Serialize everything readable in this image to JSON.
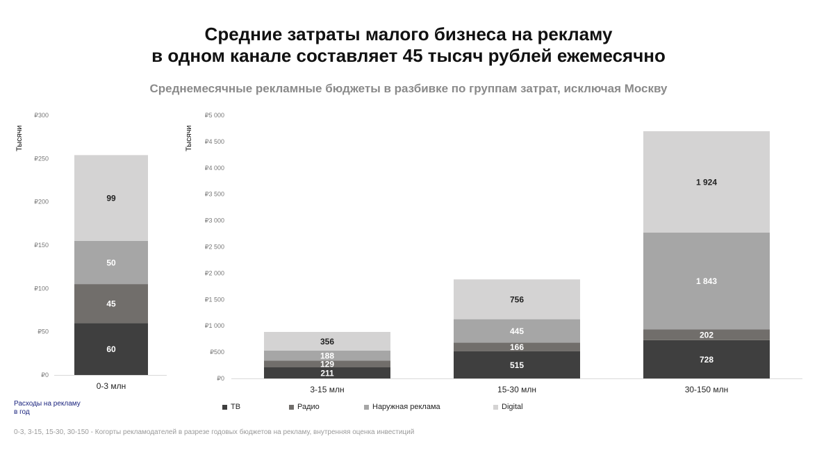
{
  "title": {
    "line1": "Средние затраты малого бизнеса на рекламу",
    "line2": "в одном канале составляет 45 тысяч рублей ежемесячно"
  },
  "subtitle": "Среднемесячные рекламные бюджеты в разбивке по группам затрат, исключая Москву",
  "note": {
    "line1": "Расходы на рекламу",
    "line2": "в год"
  },
  "footnote": "0-3, 3-15, 15-30, 30-150 - Когорты рекламодателей в разрезе годовых бюджетов на рекламу, внутренняя оценка инвестиций",
  "colors": {
    "ТВ": "#3f3f3f",
    "Радио": "#716e6b",
    "Наружная реклама": "#a6a6a6",
    "Digital": "#d4d3d3"
  },
  "chart_data": [
    {
      "type": "bar",
      "stacked": true,
      "ylabel": "Тысячи",
      "ylim": [
        0,
        300
      ],
      "yticks": [
        0,
        50,
        100,
        150,
        200,
        250,
        300
      ],
      "ytick_labels": [
        "₽0",
        "₽50",
        "₽100",
        "₽150",
        "₽200",
        "₽250",
        "₽300"
      ],
      "categories": [
        "0-3 млн"
      ],
      "series": [
        {
          "name": "ТВ",
          "values": [
            60
          ]
        },
        {
          "name": "Радио",
          "values": [
            45
          ]
        },
        {
          "name": "Наружная реклама",
          "values": [
            50
          ]
        },
        {
          "name": "Digital",
          "values": [
            99
          ]
        }
      ],
      "data_labels": [
        [
          "60"
        ],
        [
          "45"
        ],
        [
          "50"
        ],
        [
          "99"
        ]
      ]
    },
    {
      "type": "bar",
      "stacked": true,
      "ylabel": "Тысячи",
      "ylim": [
        0,
        5000
      ],
      "yticks": [
        0,
        500,
        1000,
        1500,
        2000,
        2500,
        3000,
        3500,
        4000,
        4500,
        5000
      ],
      "ytick_labels": [
        "₽0",
        "₽500",
        "₽1 000",
        "₽1 500",
        "₽2 000",
        "₽2 500",
        "₽3 000",
        "₽3 500",
        "₽4 000",
        "₽4 500",
        "₽5 000"
      ],
      "categories": [
        "3-15 млн",
        "15-30 млн",
        "30-150 млн"
      ],
      "series": [
        {
          "name": "ТВ",
          "values": [
            211,
            515,
            728
          ]
        },
        {
          "name": "Радио",
          "values": [
            129,
            166,
            202
          ]
        },
        {
          "name": "Наружная реклама",
          "values": [
            188,
            445,
            1843
          ]
        },
        {
          "name": "Digital",
          "values": [
            356,
            756,
            1924
          ]
        }
      ],
      "data_labels": [
        [
          "211",
          "515",
          "728"
        ],
        [
          "129",
          "166",
          "202"
        ],
        [
          "188",
          "445",
          "1 843"
        ],
        [
          "356",
          "756",
          "1 924"
        ]
      ]
    }
  ],
  "legend": [
    "ТВ",
    "Радио",
    "Наружная реклама",
    "Digital"
  ]
}
